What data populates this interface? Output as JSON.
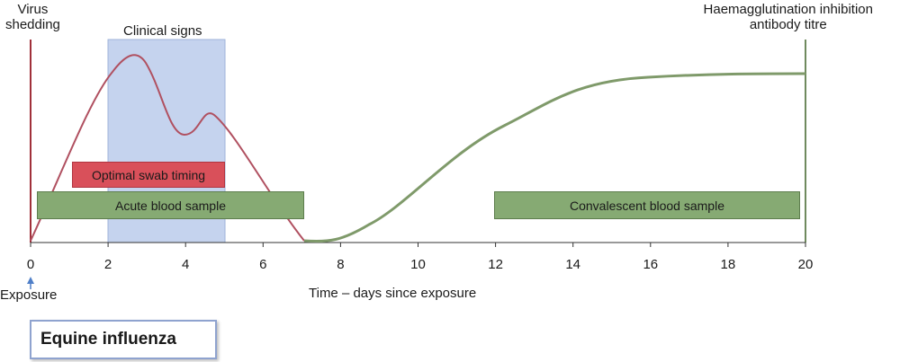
{
  "left_axis_label": [
    "Virus",
    "shedding"
  ],
  "right_axis_label": [
    "Haemagglutination inhibition",
    "antibody titre"
  ],
  "clinical_signs_label": "Clinical signs",
  "x_axis": {
    "title": "Time – days since exposure",
    "ticks": [
      "0",
      "2",
      "4",
      "6",
      "8",
      "10",
      "12",
      "14",
      "16",
      "18",
      "20"
    ]
  },
  "exposure_label": "Exposure",
  "bars": {
    "optimal_swab": "Optimal swab timing",
    "acute_blood": "Acute blood sample",
    "convalescent_blood": "Convalescent blood sample"
  },
  "legend_title": "Equine influenza",
  "colors": {
    "virus_curve": "#b05060",
    "antibody_curve": "#7f9a6a",
    "clinical_shade": "#c5d3ee",
    "swab_bar": "#d9505a",
    "blood_bar": "#86aa73",
    "axis_red": "#a0303a",
    "axis_green": "#6f8a5e",
    "arrow_blue": "#4f7fc8"
  },
  "chart_data": {
    "type": "line",
    "xlabel": "Time – days since exposure",
    "xlim": [
      0,
      20
    ],
    "series": [
      {
        "name": "Virus shedding",
        "x": [
          0,
          1,
          2,
          2.7,
          3.3,
          4,
          4.7,
          5.3,
          6,
          7
        ],
        "y": [
          0,
          0.45,
          0.8,
          0.93,
          0.78,
          0.52,
          0.64,
          0.48,
          0.24,
          0
        ]
      },
      {
        "name": "Haemagglutination inhibition antibody titre",
        "x": [
          7,
          8,
          9,
          10,
          11,
          12,
          13,
          14,
          15,
          16,
          17,
          18,
          19,
          20
        ],
        "y": [
          0,
          0,
          0.05,
          0.15,
          0.3,
          0.47,
          0.62,
          0.72,
          0.77,
          0.8,
          0.81,
          0.82,
          0.82,
          0.82
        ]
      }
    ],
    "regions": [
      {
        "label": "Clinical signs",
        "x": [
          2,
          5
        ]
      },
      {
        "label": "Optimal swab timing",
        "x": [
          1,
          5
        ]
      },
      {
        "label": "Acute blood sample",
        "x": [
          0.2,
          7
        ]
      },
      {
        "label": "Convalescent blood sample",
        "x": [
          12,
          20
        ]
      }
    ]
  }
}
